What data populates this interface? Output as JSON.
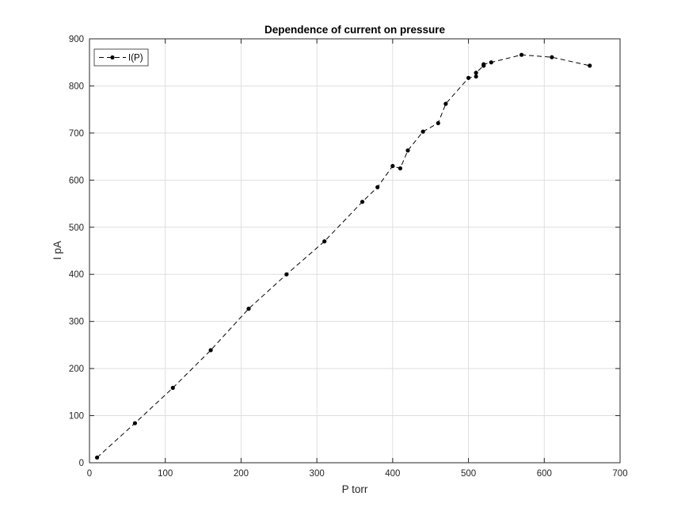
{
  "chart_data": {
    "type": "line",
    "title": "Dependence of current on pressure",
    "xlabel": "P torr",
    "ylabel": "I pA",
    "xlim": [
      0,
      700
    ],
    "ylim": [
      0,
      900
    ],
    "xticks": [
      0,
      100,
      200,
      300,
      400,
      500,
      600,
      700
    ],
    "yticks": [
      0,
      100,
      200,
      300,
      400,
      500,
      600,
      700,
      800,
      900
    ],
    "grid": true,
    "legend": {
      "position": "top-left",
      "entries": [
        "I(P)"
      ]
    },
    "series": [
      {
        "name": "I(P)",
        "line_style": "dashed",
        "marker": "dot",
        "color": "#000000",
        "x": [
          10,
          60,
          110,
          160,
          210,
          260,
          310,
          360,
          380,
          400,
          410,
          420,
          440,
          460,
          470,
          500,
          510,
          510,
          520,
          520,
          530,
          570,
          610,
          660
        ],
        "y": [
          11,
          84,
          159,
          239,
          327,
          400,
          470,
          554,
          585,
          630,
          625,
          663,
          703,
          721,
          762,
          817,
          820,
          828,
          843,
          846,
          850,
          866,
          861,
          843
        ]
      }
    ]
  }
}
